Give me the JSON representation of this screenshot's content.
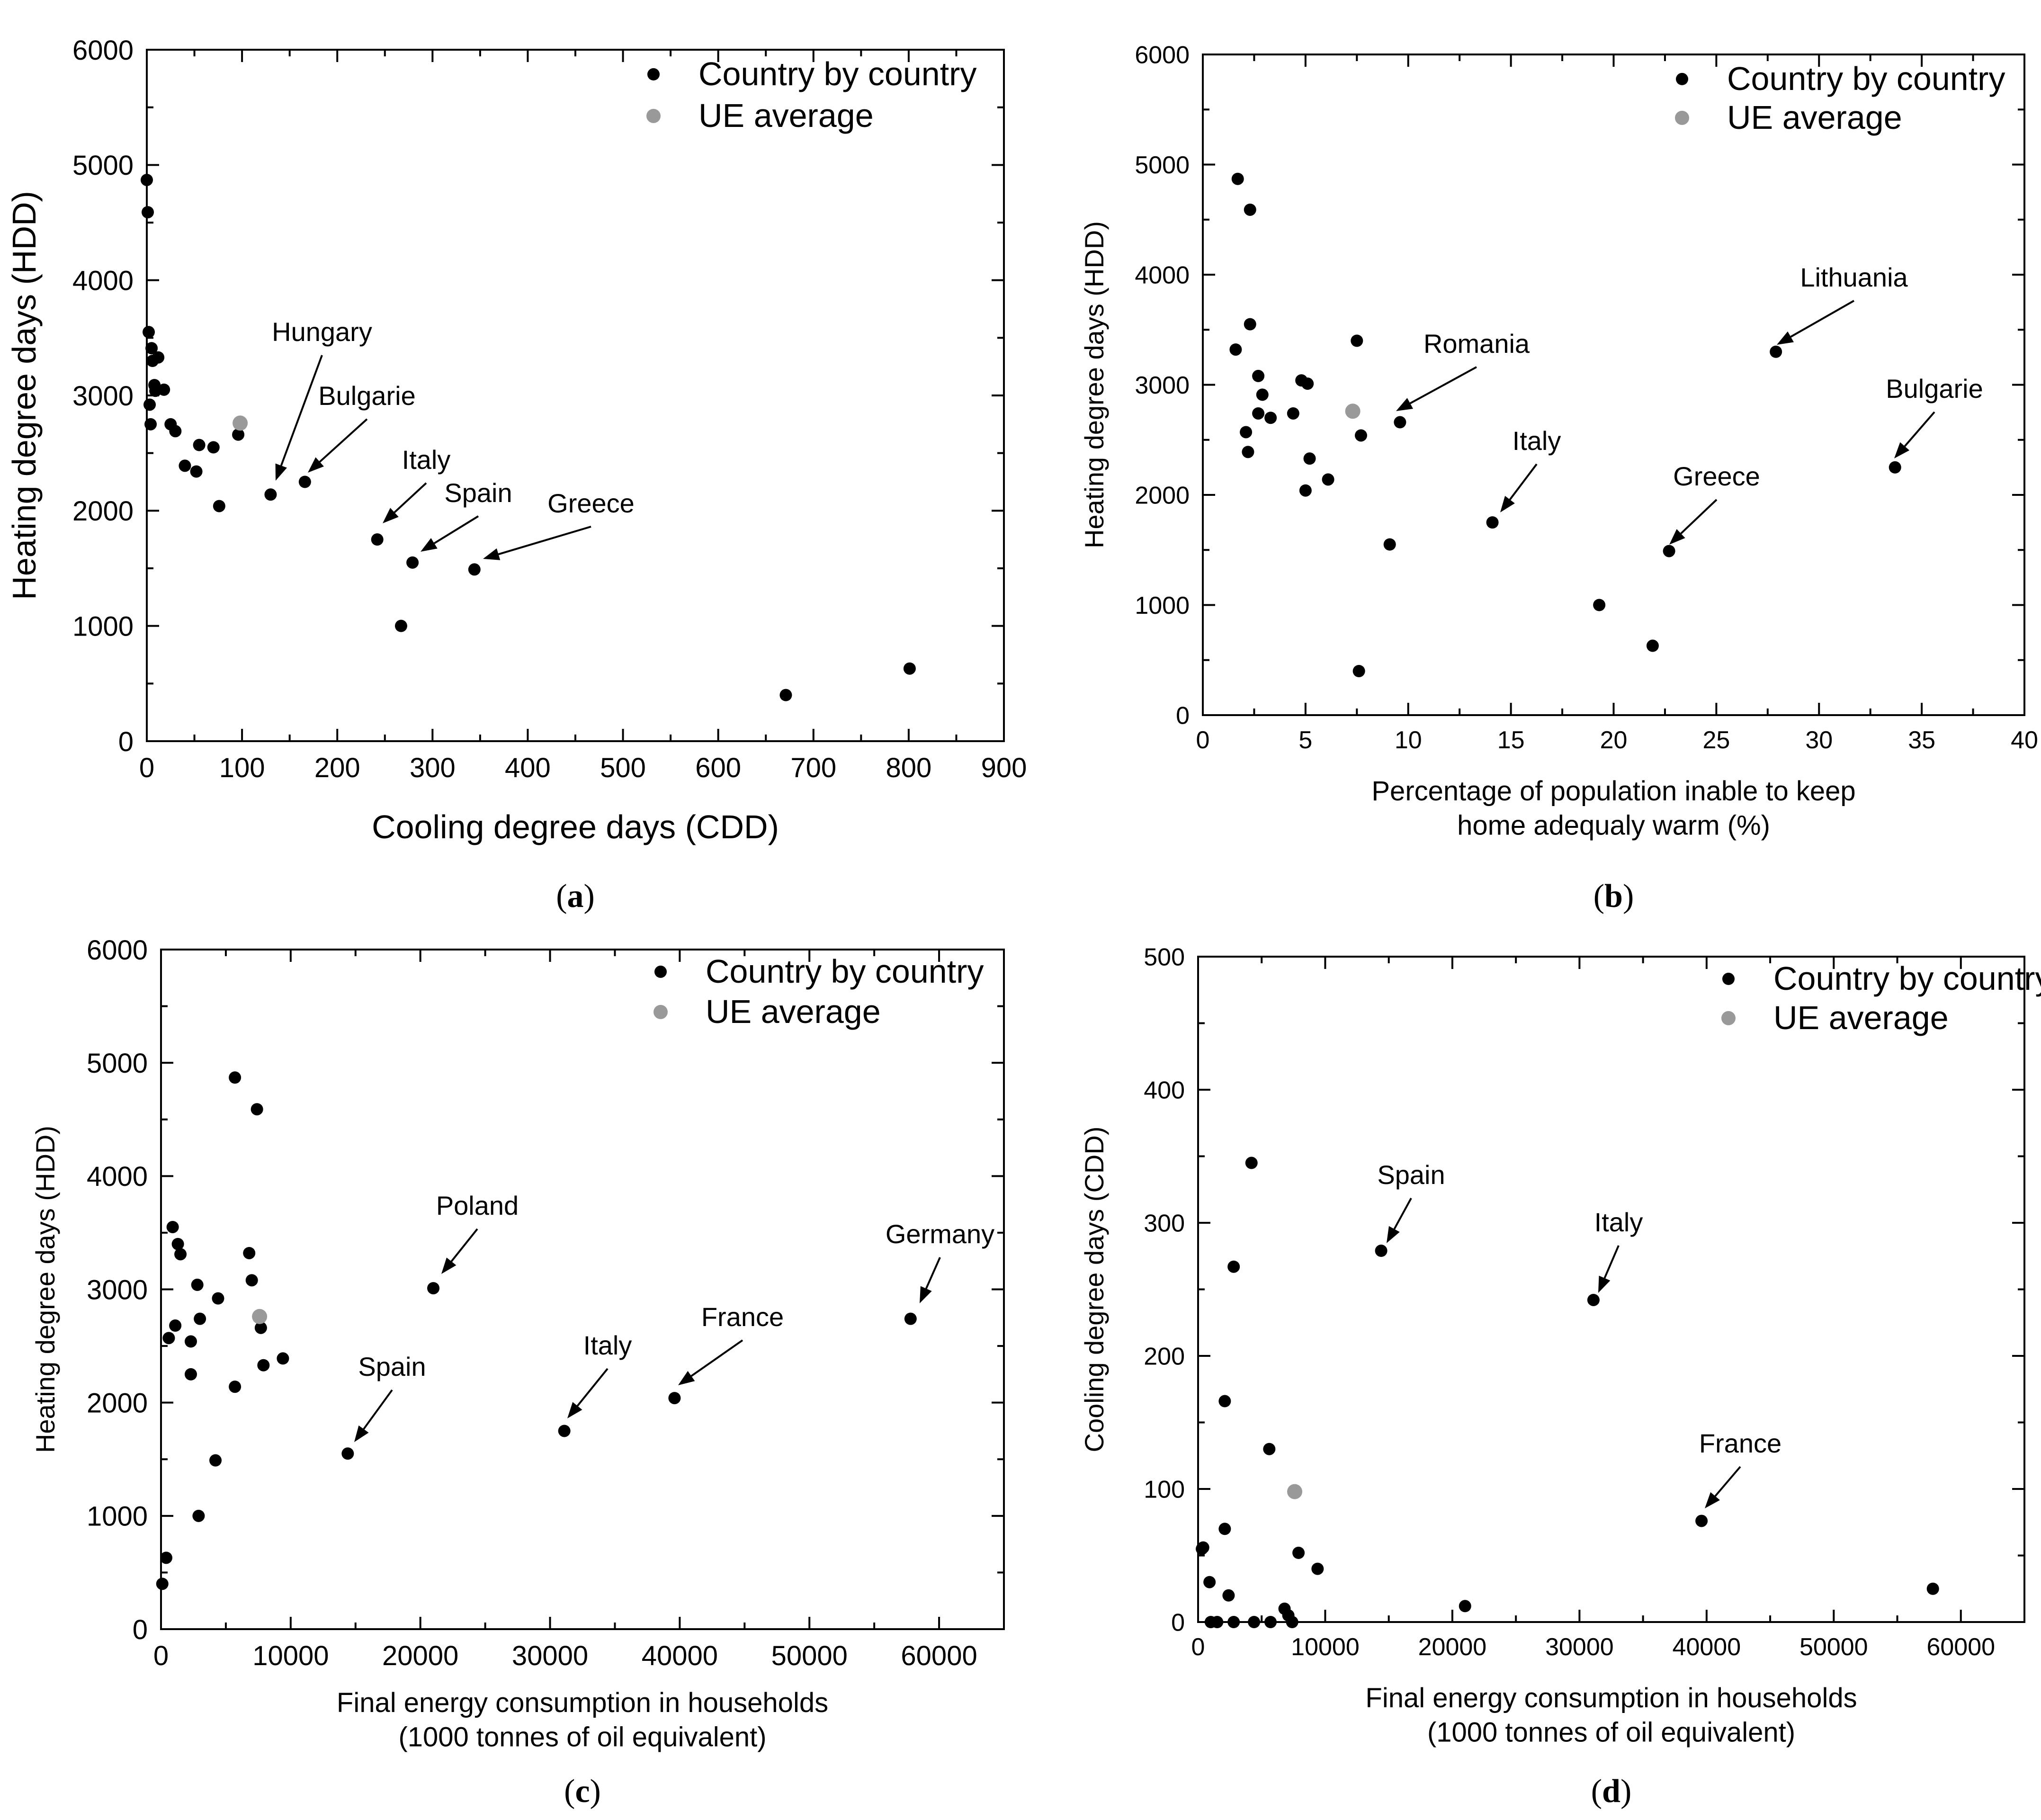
{
  "colors": {
    "country": "#000000",
    "average": "#999999"
  },
  "legend": {
    "country": "Country by country",
    "average": "UE average"
  },
  "chart_data": [
    {
      "type": "scatter",
      "panel_label": "a",
      "title": "",
      "xlabel": "Cooling degree days (CDD)",
      "ylabel": "Heating degree days (HDD)",
      "xlim": [
        0,
        900
      ],
      "ylim": [
        0,
        6000
      ],
      "xticks": [
        0,
        100,
        200,
        300,
        400,
        500,
        600,
        700,
        800,
        900
      ],
      "yticks": [
        0,
        1000,
        2000,
        3000,
        4000,
        5000,
        6000
      ],
      "legend_position": "top-right",
      "series": [
        {
          "name": "Country by country",
          "x": [
            0,
            1,
            2,
            3,
            4,
            5,
            6,
            8,
            9,
            12,
            18,
            25,
            30,
            40,
            52,
            55,
            70,
            76,
            96,
            130,
            166,
            242,
            279,
            344,
            267,
            671,
            801
          ],
          "y": [
            4870,
            4590,
            3550,
            2920,
            2750,
            3410,
            3300,
            3090,
            3040,
            3330,
            3050,
            2750,
            2690,
            2390,
            2340,
            2570,
            2550,
            2040,
            2660,
            2140,
            2250,
            1750,
            1550,
            1490,
            1000,
            400,
            630
          ]
        },
        {
          "name": "UE average",
          "x": [
            98
          ],
          "y": [
            2760
          ]
        }
      ],
      "annotations": [
        {
          "text": "Hungary",
          "x": 130,
          "y": 2140
        },
        {
          "text": "Bulgarie",
          "x": 166,
          "y": 2250
        },
        {
          "text": "Italy",
          "x": 242,
          "y": 1750
        },
        {
          "text": "Spain",
          "x": 279,
          "y": 1550
        },
        {
          "text": "Greece",
          "x": 344,
          "y": 1490
        }
      ]
    },
    {
      "type": "scatter",
      "panel_label": "b",
      "title": "",
      "xlabel": [
        "Percentage of population inable to keep",
        "home adequaly warm  (%)"
      ],
      "ylabel": "Heating degree days (HDD)",
      "xlim": [
        0,
        40
      ],
      "ylim": [
        0,
        6000
      ],
      "xticks": [
        0,
        5,
        10,
        15,
        20,
        25,
        30,
        35,
        40
      ],
      "yticks": [
        0,
        1000,
        2000,
        3000,
        4000,
        5000,
        6000
      ],
      "legend_position": "top-right",
      "series": [
        {
          "name": "Country by country",
          "x": [
            1.7,
            2.3,
            2.3,
            1.6,
            2.7,
            2.9,
            2.1,
            2.7,
            3.3,
            2.2,
            4.4,
            5.1,
            5.2,
            4.8,
            6.1,
            7.5,
            7.7,
            9.6,
            9.1,
            14.1,
            7.6,
            19.3,
            21.9,
            22.7,
            27.9,
            33.7,
            5.0
          ],
          "y": [
            4870,
            4590,
            3550,
            3320,
            3080,
            2910,
            2570,
            2740,
            2700,
            2390,
            2740,
            3010,
            2330,
            3040,
            2140,
            3400,
            2540,
            2660,
            1550,
            1750,
            400,
            1000,
            630,
            1490,
            3300,
            2250,
            2040
          ]
        },
        {
          "name": "UE average",
          "x": [
            7.3
          ],
          "y": [
            2760
          ]
        }
      ],
      "annotations": [
        {
          "text": "Romania",
          "x": 9.6,
          "y": 2660
        },
        {
          "text": "Lithuania",
          "x": 27.9,
          "y": 3300
        },
        {
          "text": "Italy",
          "x": 14.1,
          "y": 1750
        },
        {
          "text": "Greece",
          "x": 22.7,
          "y": 1490
        },
        {
          "text": "Bulgarie",
          "x": 33.7,
          "y": 2250
        }
      ]
    },
    {
      "type": "scatter",
      "panel_label": "c",
      "title": "",
      "xlabel": [
        "Final energy consumption in households",
        "(1000 tonnes of oil equivalent)"
      ],
      "ylabel": "Heating degree days (HDD)",
      "xlim": [
        0,
        65000
      ],
      "ylim": [
        0,
        6000
      ],
      "xticks": [
        0,
        10000,
        20000,
        30000,
        40000,
        50000,
        60000
      ],
      "yticks": [
        0,
        1000,
        2000,
        3000,
        4000,
        5000,
        6000
      ],
      "legend_position": "top-right",
      "series": [
        {
          "name": "Country by country",
          "x": [
            5700,
            7400,
            900,
            1300,
            1500,
            6800,
            7000,
            2800,
            4400,
            3000,
            600,
            1100,
            2300,
            2300,
            7700,
            7900,
            9400,
            5700,
            4200,
            2900,
            400,
            100,
            21000,
            14400,
            31100,
            39600,
            57800
          ],
          "y": [
            4870,
            4590,
            3550,
            3400,
            3310,
            3320,
            3080,
            3040,
            2920,
            2740,
            2570,
            2680,
            2540,
            2250,
            2660,
            2330,
            2390,
            2140,
            1490,
            1000,
            630,
            400,
            3010,
            1550,
            1750,
            2040,
            2740
          ]
        },
        {
          "name": "UE average",
          "x": [
            7600
          ],
          "y": [
            2760
          ]
        }
      ],
      "annotations": [
        {
          "text": "Poland",
          "x": 21000,
          "y": 3010
        },
        {
          "text": "Germany",
          "x": 57800,
          "y": 2740
        },
        {
          "text": "Spain",
          "x": 14400,
          "y": 1550
        },
        {
          "text": "Italy",
          "x": 31100,
          "y": 1750
        },
        {
          "text": "France",
          "x": 39600,
          "y": 2040
        }
      ]
    },
    {
      "type": "scatter",
      "panel_label": "d",
      "title": "",
      "xlabel": [
        "Final energy consumption in households",
        "(1000 tonnes of oil equivalent)"
      ],
      "ylabel": "Cooling degree days (CDD)",
      "xlim": [
        0,
        65000
      ],
      "ylim": [
        0,
        500
      ],
      "xticks": [
        0,
        10000,
        20000,
        30000,
        40000,
        50000,
        60000
      ],
      "yticks": [
        0,
        100,
        200,
        300,
        400,
        500
      ],
      "legend_position": "top-right",
      "series": [
        {
          "name": "Country by country",
          "x": [
            4200,
            2800,
            2100,
            5600,
            2100,
            300,
            400,
            900,
            2400,
            7900,
            9400,
            6800,
            7100,
            7400,
            21000,
            57800,
            1000,
            1500,
            2800,
            4400,
            5700,
            14400,
            31100,
            39600
          ],
          "y": [
            345,
            267,
            166,
            130,
            70,
            55,
            56,
            30,
            20,
            52,
            40,
            10,
            5,
            0,
            12,
            25,
            0,
            0,
            0,
            0,
            0,
            279,
            242,
            76
          ]
        },
        {
          "name": "UE average",
          "x": [
            7600
          ],
          "y": [
            98
          ]
        }
      ],
      "annotations": [
        {
          "text": "Spain",
          "x": 14400,
          "y": 279
        },
        {
          "text": "Italy",
          "x": 31100,
          "y": 242
        },
        {
          "text": "France",
          "x": 39600,
          "y": 76
        }
      ]
    }
  ]
}
